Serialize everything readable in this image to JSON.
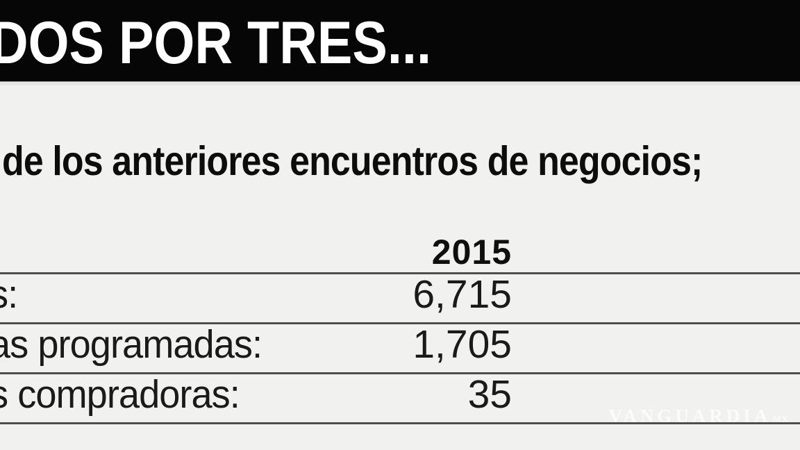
{
  "header": {
    "title": "DOS POR TRES...",
    "background": "#060606",
    "text_color": "#ffffff"
  },
  "subtitle": "de los anteriores encuentros de negocios;",
  "table": {
    "year_header": "2015",
    "rows": [
      {
        "label": "s:",
        "value": "6,715"
      },
      {
        "label": "as programadas:",
        "value": "1,705"
      },
      {
        "label": "s compradoras:",
        "value": "35"
      }
    ]
  },
  "watermark": {
    "text": "VANGUARDIA",
    "suffix": "MX"
  },
  "colors": {
    "background": "#f1f1ef",
    "rule": "#4f4f4f",
    "text": "#1a1a1a"
  },
  "chart_data": {
    "type": "table",
    "title": "DOS POR TRES...",
    "subtitle": "de los anteriores encuentros de negocios;",
    "columns": [
      "",
      "2015"
    ],
    "rows": [
      [
        "s:",
        6715
      ],
      [
        "as programadas:",
        1705
      ],
      [
        "s compradoras:",
        35
      ]
    ],
    "legend_position": "none",
    "grid": "horizontal-rules"
  }
}
